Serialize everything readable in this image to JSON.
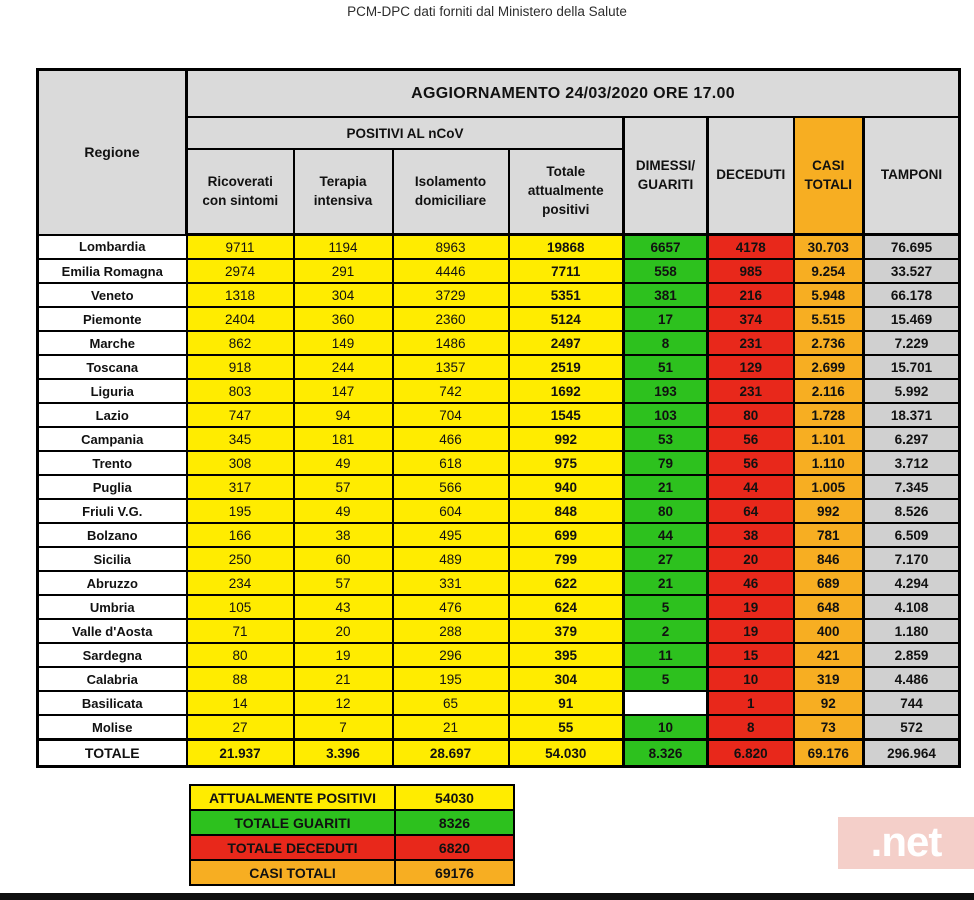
{
  "page_title": "PCM-DPC dati forniti dal Ministero della Salute",
  "labels": {
    "regione": "Regione",
    "update": "AGGIORNAMENTO 24/03/2020 ORE 17.00",
    "positivi_group": "POSITIVI AL nCoV",
    "ricoverati": "Ricoverati\ncon sintomi",
    "terapia": "Terapia\nintensiva",
    "isolamento": "Isolamento\ndomiciliare",
    "totale_attualmente": "Totale\nattualmente\npositivi",
    "dimessi": "DIMESSI/\nGUARITI",
    "deceduti": "DECEDUTI",
    "casi": "CASI\nTOTALI",
    "tamponi": "TAMPONI"
  },
  "chart_data": {
    "type": "table",
    "title": "AGGIORNAMENTO 24/03/2020 ORE 17.00",
    "columns": [
      "Regione",
      "Ricoverati con sintomi",
      "Terapia intensiva",
      "Isolamento domiciliare",
      "Totale attualmente positivi",
      "DIMESSI/GUARITI",
      "DECEDUTI",
      "CASI TOTALI",
      "TAMPONI"
    ],
    "rows": [
      [
        "Lombardia",
        "9711",
        "1194",
        "8963",
        "19868",
        "6657",
        "4178",
        "30.703",
        "76.695"
      ],
      [
        "Emilia Romagna",
        "2974",
        "291",
        "4446",
        "7711",
        "558",
        "985",
        "9.254",
        "33.527"
      ],
      [
        "Veneto",
        "1318",
        "304",
        "3729",
        "5351",
        "381",
        "216",
        "5.948",
        "66.178"
      ],
      [
        "Piemonte",
        "2404",
        "360",
        "2360",
        "5124",
        "17",
        "374",
        "5.515",
        "15.469"
      ],
      [
        "Marche",
        "862",
        "149",
        "1486",
        "2497",
        "8",
        "231",
        "2.736",
        "7.229"
      ],
      [
        "Toscana",
        "918",
        "244",
        "1357",
        "2519",
        "51",
        "129",
        "2.699",
        "15.701"
      ],
      [
        "Liguria",
        "803",
        "147",
        "742",
        "1692",
        "193",
        "231",
        "2.116",
        "5.992"
      ],
      [
        "Lazio",
        "747",
        "94",
        "704",
        "1545",
        "103",
        "80",
        "1.728",
        "18.371"
      ],
      [
        "Campania",
        "345",
        "181",
        "466",
        "992",
        "53",
        "56",
        "1.101",
        "6.297"
      ],
      [
        "Trento",
        "308",
        "49",
        "618",
        "975",
        "79",
        "56",
        "1.110",
        "3.712"
      ],
      [
        "Puglia",
        "317",
        "57",
        "566",
        "940",
        "21",
        "44",
        "1.005",
        "7.345"
      ],
      [
        "Friuli V.G.",
        "195",
        "49",
        "604",
        "848",
        "80",
        "64",
        "992",
        "8.526"
      ],
      [
        "Bolzano",
        "166",
        "38",
        "495",
        "699",
        "44",
        "38",
        "781",
        "6.509"
      ],
      [
        "Sicilia",
        "250",
        "60",
        "489",
        "799",
        "27",
        "20",
        "846",
        "7.170"
      ],
      [
        "Abruzzo",
        "234",
        "57",
        "331",
        "622",
        "21",
        "46",
        "689",
        "4.294"
      ],
      [
        "Umbria",
        "105",
        "43",
        "476",
        "624",
        "5",
        "19",
        "648",
        "4.108"
      ],
      [
        "Valle d'Aosta",
        "71",
        "20",
        "288",
        "379",
        "2",
        "19",
        "400",
        "1.180"
      ],
      [
        "Sardegna",
        "80",
        "19",
        "296",
        "395",
        "11",
        "15",
        "421",
        "2.859"
      ],
      [
        "Calabria",
        "88",
        "21",
        "195",
        "304",
        "5",
        "10",
        "319",
        "4.486"
      ],
      [
        "Basilicata",
        "14",
        "12",
        "65",
        "91",
        "",
        "1",
        "92",
        "744"
      ],
      [
        "Molise",
        "27",
        "7",
        "21",
        "55",
        "10",
        "8",
        "73",
        "572"
      ]
    ],
    "totals": [
      "TOTALE",
      "21.937",
      "3.396",
      "28.697",
      "54.030",
      "8.326",
      "6.820",
      "69.176",
      "296.964"
    ]
  },
  "summary": {
    "rows": [
      {
        "label": "ATTUALMENTE POSITIVI",
        "value": "54030",
        "color": "#FFEC00"
      },
      {
        "label": "TOTALE GUARITI",
        "value": "8326",
        "color": "#2DC11E"
      },
      {
        "label": "TOTALE DECEDUTI",
        "value": "6820",
        "color": "#E8281B"
      },
      {
        "label": "CASI TOTALI",
        "value": "69176",
        "color": "#F7AE22"
      }
    ]
  },
  "watermark": ".net",
  "colors": {
    "yellow": "#FFEC00",
    "green": "#2DC11E",
    "red": "#E8281B",
    "orange": "#F7AE22",
    "gray-cell": "#D0D0D0",
    "gray-header": "#DADADA",
    "wm-bg": "#F4CFC9"
  }
}
